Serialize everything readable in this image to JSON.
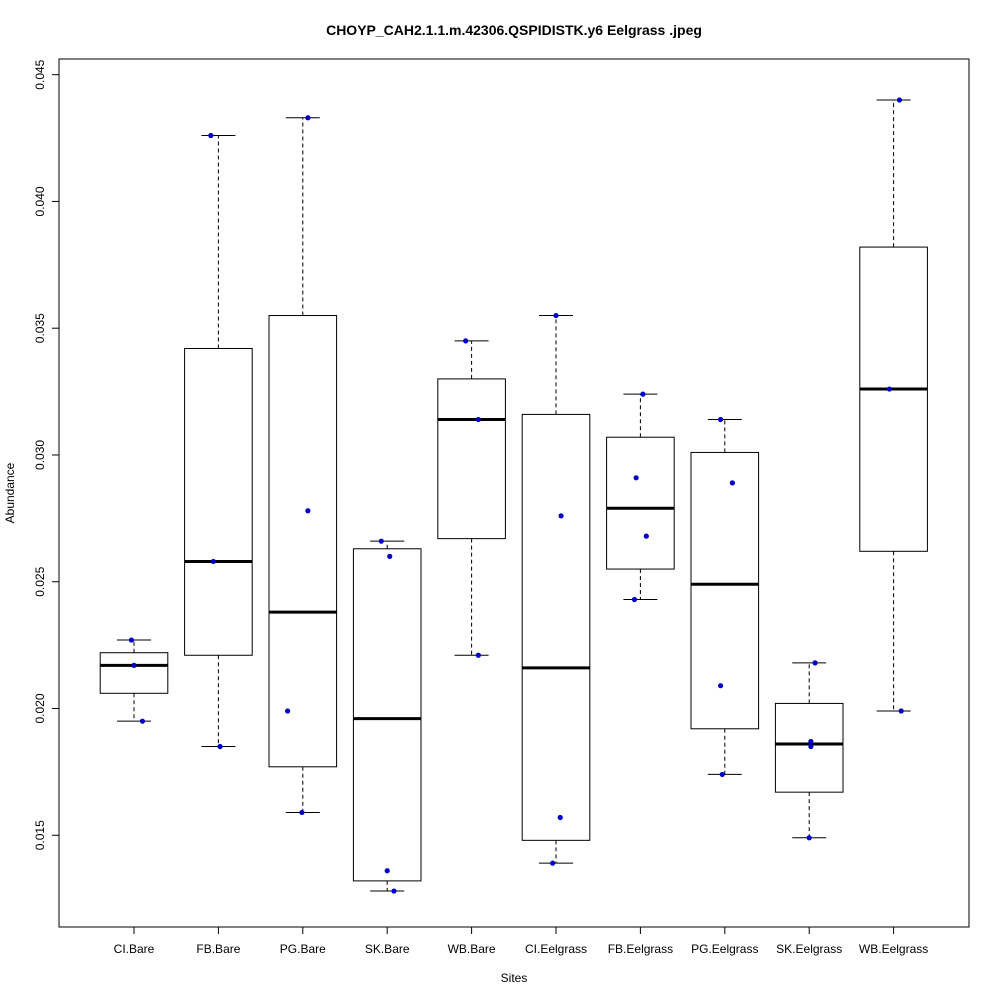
{
  "chart_data": {
    "type": "boxplot",
    "title": "CHOYP_CAH2.1.1.m.42306.QSPIDISTK.y6 Eelgrass .jpeg",
    "xlabel": "Sites",
    "ylabel": "Abundance",
    "ylim": [
      0.0115,
      0.0455
    ],
    "yticks": [
      "0.015",
      "0.020",
      "0.025",
      "0.030",
      "0.035",
      "0.040",
      "0.045"
    ],
    "colors": {
      "box": "#000000",
      "point": "#0000cc",
      "median": "#000000"
    },
    "categories": [
      "CI.Bare",
      "FB.Bare",
      "PG.Bare",
      "SK.Bare",
      "WB.Bare",
      "CI.Eelgrass",
      "FB.Eelgrass",
      "PG.Eelgrass",
      "SK.Eelgrass",
      "WB.Eelgrass"
    ],
    "boxes": [
      {
        "name": "CI.Bare",
        "whisker_low": 0.0195,
        "q1": 0.0206,
        "median": 0.0217,
        "q3": 0.0222,
        "whisker_high": 0.0227
      },
      {
        "name": "FB.Bare",
        "whisker_low": 0.0185,
        "q1": 0.0221,
        "median": 0.0258,
        "q3": 0.0342,
        "whisker_high": 0.0426
      },
      {
        "name": "PG.Bare",
        "whisker_low": 0.0159,
        "q1": 0.0177,
        "median": 0.0238,
        "q3": 0.0355,
        "whisker_high": 0.0433
      },
      {
        "name": "SK.Bare",
        "whisker_low": 0.0128,
        "q1": 0.0132,
        "median": 0.0196,
        "q3": 0.0263,
        "whisker_high": 0.0266
      },
      {
        "name": "WB.Bare",
        "whisker_low": 0.0221,
        "q1": 0.0267,
        "median": 0.0314,
        "q3": 0.033,
        "whisker_high": 0.0345
      },
      {
        "name": "CI.Eelgrass",
        "whisker_low": 0.0139,
        "q1": 0.0148,
        "median": 0.0216,
        "q3": 0.0316,
        "whisker_high": 0.0355
      },
      {
        "name": "FB.Eelgrass",
        "whisker_low": 0.0243,
        "q1": 0.0255,
        "median": 0.0279,
        "q3": 0.0307,
        "whisker_high": 0.0324
      },
      {
        "name": "PG.Eelgrass",
        "whisker_low": 0.0174,
        "q1": 0.0192,
        "median": 0.0249,
        "q3": 0.0301,
        "whisker_high": 0.0314
      },
      {
        "name": "SK.Eelgrass",
        "whisker_low": 0.0149,
        "q1": 0.0167,
        "median": 0.0186,
        "q3": 0.0202,
        "whisker_high": 0.0218
      },
      {
        "name": "WB.Eelgrass",
        "whisker_low": 0.0199,
        "q1": 0.0262,
        "median": 0.0326,
        "q3": 0.0382,
        "whisker_high": 0.044
      }
    ],
    "points": [
      {
        "group": 0,
        "jitter": -0.03,
        "y": 0.0227
      },
      {
        "group": 0,
        "jitter": 0.0,
        "y": 0.0217
      },
      {
        "group": 0,
        "jitter": 0.1,
        "y": 0.0195
      },
      {
        "group": 1,
        "jitter": -0.09,
        "y": 0.0426
      },
      {
        "group": 1,
        "jitter": -0.06,
        "y": 0.0258
      },
      {
        "group": 1,
        "jitter": 0.02,
        "y": 0.0185
      },
      {
        "group": 2,
        "jitter": 0.06,
        "y": 0.0433
      },
      {
        "group": 2,
        "jitter": 0.06,
        "y": 0.0278
      },
      {
        "group": 2,
        "jitter": -0.18,
        "y": 0.0199
      },
      {
        "group": 2,
        "jitter": -0.01,
        "y": 0.0159
      },
      {
        "group": 3,
        "jitter": -0.07,
        "y": 0.0266
      },
      {
        "group": 3,
        "jitter": 0.03,
        "y": 0.026
      },
      {
        "group": 3,
        "jitter": 0.0,
        "y": 0.0136
      },
      {
        "group": 3,
        "jitter": 0.08,
        "y": 0.0128
      },
      {
        "group": 4,
        "jitter": -0.07,
        "y": 0.0345
      },
      {
        "group": 4,
        "jitter": 0.08,
        "y": 0.0314
      },
      {
        "group": 4,
        "jitter": 0.08,
        "y": 0.0221
      },
      {
        "group": 5,
        "jitter": 0.0,
        "y": 0.0355
      },
      {
        "group": 5,
        "jitter": 0.06,
        "y": 0.0276
      },
      {
        "group": 5,
        "jitter": 0.05,
        "y": 0.0157
      },
      {
        "group": 5,
        "jitter": -0.04,
        "y": 0.0139
      },
      {
        "group": 6,
        "jitter": 0.03,
        "y": 0.0324
      },
      {
        "group": 6,
        "jitter": -0.05,
        "y": 0.0291
      },
      {
        "group": 6,
        "jitter": 0.07,
        "y": 0.0268
      },
      {
        "group": 6,
        "jitter": -0.07,
        "y": 0.0243
      },
      {
        "group": 7,
        "jitter": -0.05,
        "y": 0.0314
      },
      {
        "group": 7,
        "jitter": 0.09,
        "y": 0.0289
      },
      {
        "group": 7,
        "jitter": -0.05,
        "y": 0.0209
      },
      {
        "group": 7,
        "jitter": -0.03,
        "y": 0.0174
      },
      {
        "group": 8,
        "jitter": 0.07,
        "y": 0.0218
      },
      {
        "group": 8,
        "jitter": 0.02,
        "y": 0.0187
      },
      {
        "group": 8,
        "jitter": 0.02,
        "y": 0.0185
      },
      {
        "group": 8,
        "jitter": 0.0,
        "y": 0.0149
      },
      {
        "group": 9,
        "jitter": 0.07,
        "y": 0.044
      },
      {
        "group": 9,
        "jitter": -0.05,
        "y": 0.0326
      },
      {
        "group": 9,
        "jitter": 0.09,
        "y": 0.0199
      }
    ]
  }
}
